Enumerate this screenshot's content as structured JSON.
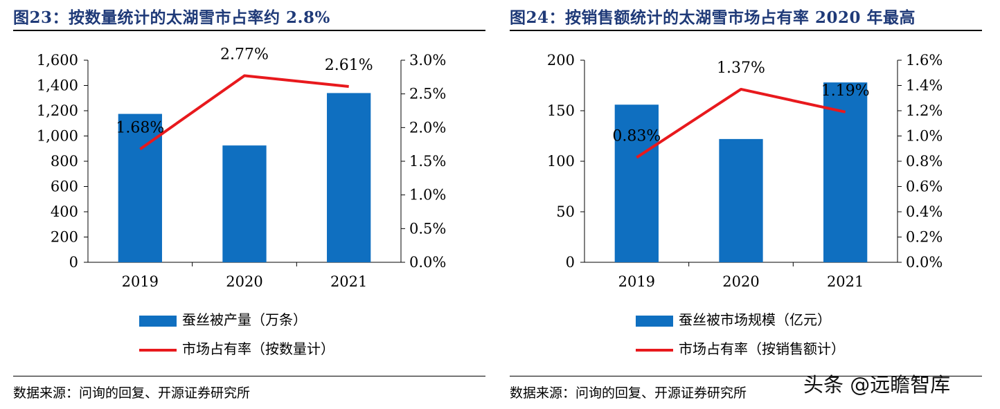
{
  "charts": [
    {
      "title": "图23：按数量统计的太湖雪市占率约 2.8%",
      "source": "数据来源：问询的回复、开源证券研究所",
      "legend_bar": "蚕丝被产量（万条）",
      "legend_line": "市场占有率（按数量计）"
    },
    {
      "title": "图24：按销售额统计的太湖雪市场占有率 2020 年最高",
      "source": "数据来源：问询的回复、开源证券研究所",
      "legend_bar": "蚕丝被市场规模（亿元）",
      "legend_line": "市场占有率（按销售额计）"
    }
  ],
  "watermark": "头条 @远瞻智库",
  "chart_data": [
    {
      "type": "bar",
      "combo_line": true,
      "categories": [
        "2019",
        "2020",
        "2021"
      ],
      "series": [
        {
          "name": "蚕丝被产量（万条）",
          "type": "bar",
          "axis": "left",
          "values": [
            1175,
            925,
            1340
          ],
          "color": "#0F6FC0"
        },
        {
          "name": "市场占有率（按数量计）",
          "type": "line",
          "axis": "right",
          "values": [
            1.68,
            2.77,
            2.61
          ],
          "labels": [
            "1.68%",
            "2.77%",
            "2.61%"
          ],
          "color": "#E8191D"
        }
      ],
      "ylim": [
        0,
        1600
      ],
      "y_ticks": [
        "0",
        "200",
        "400",
        "600",
        "800",
        "1,000",
        "1,200",
        "1,400",
        "1,600"
      ],
      "y2lim": [
        0,
        3.0
      ],
      "y2_ticks": [
        "0.0%",
        "0.5%",
        "1.0%",
        "1.5%",
        "2.0%",
        "2.5%",
        "3.0%"
      ],
      "grid": false,
      "legend_position": "bottom"
    },
    {
      "type": "bar",
      "combo_line": true,
      "categories": [
        "2019",
        "2020",
        "2021"
      ],
      "series": [
        {
          "name": "蚕丝被市场规模（亿元）",
          "type": "bar",
          "axis": "left",
          "values": [
            156,
            122,
            178
          ],
          "color": "#0F6FC0"
        },
        {
          "name": "市场占有率（按销售额计）",
          "type": "line",
          "axis": "right",
          "values": [
            0.83,
            1.37,
            1.19
          ],
          "labels": [
            "0.83%",
            "1.37%",
            "1.19%"
          ],
          "color": "#E8191D"
        }
      ],
      "ylim": [
        0,
        200
      ],
      "y_ticks": [
        "0",
        "50",
        "100",
        "150",
        "200"
      ],
      "y2lim": [
        0,
        1.6
      ],
      "y2_ticks": [
        "0.0%",
        "0.2%",
        "0.4%",
        "0.6%",
        "0.8%",
        "1.0%",
        "1.2%",
        "1.4%",
        "1.6%"
      ],
      "grid": false,
      "legend_position": "bottom"
    }
  ]
}
